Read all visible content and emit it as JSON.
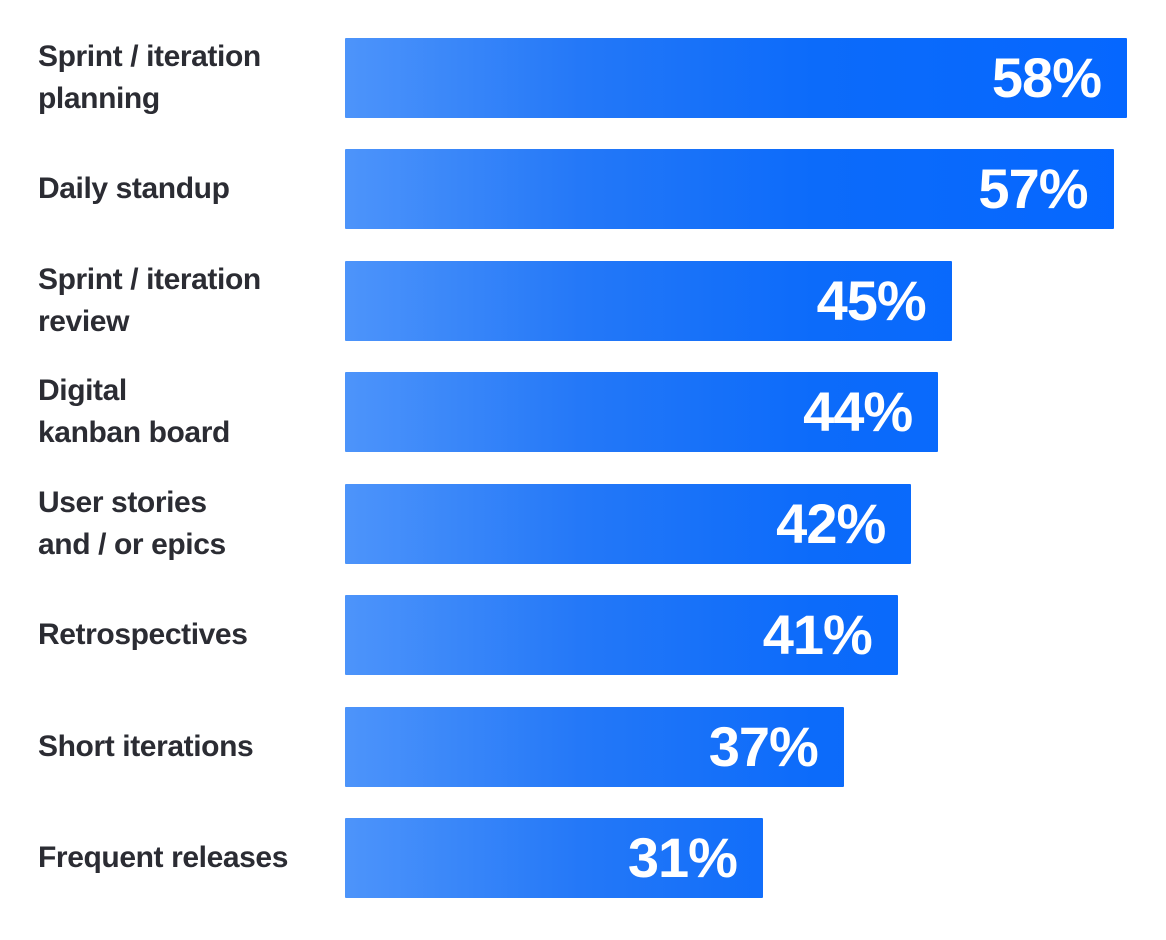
{
  "chart_data": {
    "type": "bar",
    "orientation": "horizontal",
    "title": "",
    "xlabel": "",
    "ylabel": "",
    "grid": false,
    "legend": false,
    "scale_max": 58,
    "value_suffix": "%",
    "categories": [
      "Sprint / iteration\nplanning",
      "Daily standup",
      "Sprint / iteration\nreview",
      "Digital\nkanban board",
      "User stories\nand / or epics",
      "Retrospectives",
      "Short iterations",
      "Frequent releases"
    ],
    "values": [
      58,
      57,
      45,
      44,
      42,
      41,
      37,
      31
    ],
    "rows": [
      {
        "label": "Sprint / iteration\nplanning",
        "value": 58,
        "display": "58%"
      },
      {
        "label": "Daily standup",
        "value": 57,
        "display": "57%"
      },
      {
        "label": "Sprint / iteration\nreview",
        "value": 45,
        "display": "45%"
      },
      {
        "label": "Digital\nkanban board",
        "value": 44,
        "display": "44%"
      },
      {
        "label": "User stories\nand / or epics",
        "value": 42,
        "display": "42%"
      },
      {
        "label": "Retrospectives",
        "value": 41,
        "display": "41%"
      },
      {
        "label": "Short iterations",
        "value": 37,
        "display": "37%"
      },
      {
        "label": "Frequent releases",
        "value": 31,
        "display": "31%"
      }
    ],
    "style": {
      "background_color": "#ffffff",
      "category_label_color": "#2b2c33",
      "value_label_color": "#ffffff",
      "bar_gradient_stops": [
        [
          "#4d94fa",
          "0%"
        ],
        [
          "#2478f8",
          "30%"
        ],
        [
          "#0c6bfa",
          "60%"
        ],
        [
          "#0567ff",
          "100%"
        ]
      ]
    }
  }
}
